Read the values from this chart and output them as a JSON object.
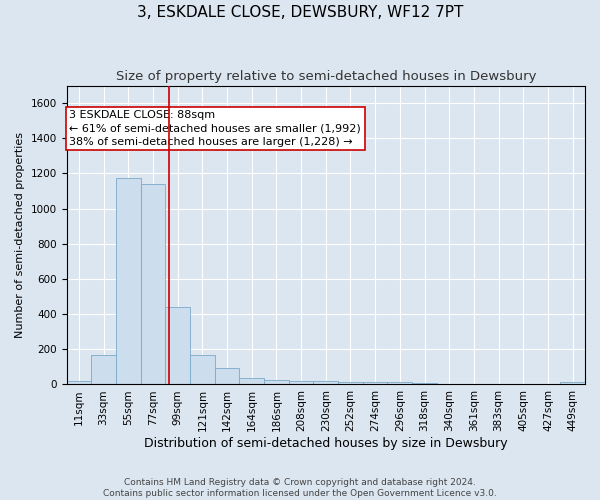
{
  "title": "3, ESKDALE CLOSE, DEWSBURY, WF12 7PT",
  "subtitle": "Size of property relative to semi-detached houses in Dewsbury",
  "xlabel": "Distribution of semi-detached houses by size in Dewsbury",
  "ylabel": "Number of semi-detached properties",
  "footnote1": "Contains HM Land Registry data © Crown copyright and database right 2024.",
  "footnote2": "Contains public sector information licensed under the Open Government Licence v3.0.",
  "bar_labels": [
    "11sqm",
    "33sqm",
    "55sqm",
    "77sqm",
    "99sqm",
    "121sqm",
    "142sqm",
    "164sqm",
    "186sqm",
    "208sqm",
    "230sqm",
    "252sqm",
    "274sqm",
    "296sqm",
    "318sqm",
    "340sqm",
    "361sqm",
    "383sqm",
    "405sqm",
    "427sqm",
    "449sqm"
  ],
  "bar_values": [
    18,
    170,
    1175,
    1140,
    440,
    170,
    95,
    38,
    25,
    22,
    18,
    15,
    15,
    14,
    8,
    5,
    3,
    3,
    2,
    2,
    12
  ],
  "bar_color": "#ccdded",
  "bar_edge_color": "#7aaac8",
  "property_label": "3 ESKDALE CLOSE: 88sqm",
  "annotation_line1": "← 61% of semi-detached houses are smaller (1,992)",
  "annotation_line2": "38% of semi-detached houses are larger (1,228) →",
  "vline_color": "#cc0000",
  "annotation_box_facecolor": "#ffffff",
  "annotation_box_edgecolor": "#cc0000",
  "ylim": [
    0,
    1700
  ],
  "background_color": "#dce6f0",
  "plot_background": "#dce6f0",
  "grid_color": "#ffffff",
  "title_fontsize": 11,
  "subtitle_fontsize": 9.5,
  "ylabel_fontsize": 8,
  "xlabel_fontsize": 9,
  "tick_fontsize": 7.5,
  "annotation_fontsize": 8,
  "vline_x_index": 3.64
}
